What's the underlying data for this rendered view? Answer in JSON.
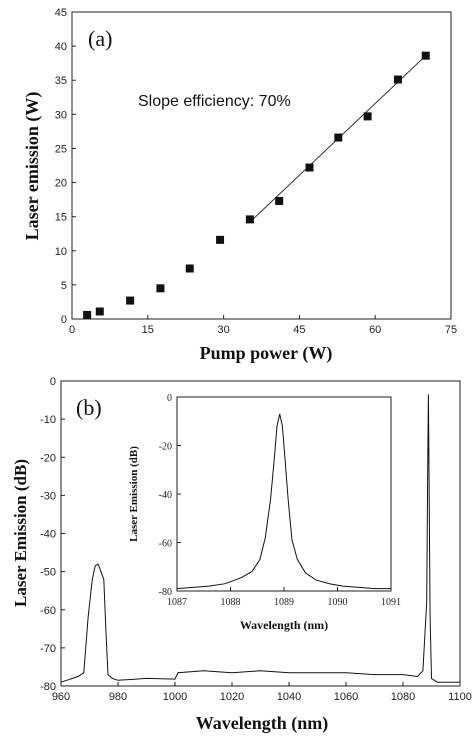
{
  "chart_data": [
    {
      "type": "scatter",
      "panel_label": "(a)",
      "xlabel": "Pump power (W)",
      "ylabel": "Laser emission (W)",
      "xlim": [
        0,
        75
      ],
      "ylim": [
        0,
        45
      ],
      "xticks": [
        0,
        15,
        30,
        45,
        60,
        75
      ],
      "yticks": [
        0,
        5,
        10,
        15,
        20,
        25,
        30,
        35,
        40,
        45
      ],
      "grid": false,
      "series": [
        {
          "x": [
            3,
            5.5,
            11.5,
            17.5,
            23.3,
            29.3,
            35.2,
            41,
            47,
            52.7,
            58.5,
            64.5,
            70
          ],
          "y": [
            0.6,
            1.1,
            2.7,
            4.5,
            7.4,
            11.6,
            14.6,
            17.3,
            22.2,
            26.6,
            29.7,
            35.1,
            38.6
          ]
        }
      ],
      "fit_line": {
        "x": [
          35.2,
          70
        ],
        "y": [
          14.2,
          38.6
        ]
      },
      "annotation": "Slope efficiency: 70%"
    },
    {
      "type": "line",
      "panel_label": "(b)",
      "xlabel": "Wavelength (nm)",
      "ylabel": "Laser Emission (dB)",
      "xlim": [
        960,
        1100
      ],
      "ylim": [
        -80,
        0
      ],
      "xticks": [
        960,
        980,
        1000,
        1020,
        1040,
        1060,
        1080,
        1100
      ],
      "yticks": [
        0,
        -10,
        -20,
        -30,
        -40,
        -50,
        -60,
        -70,
        -80
      ],
      "grid": false,
      "series": [
        {
          "x": [
            960,
            962,
            964,
            966,
            968,
            969.5,
            971,
            972,
            973,
            974,
            975,
            975.8,
            976.5,
            978,
            980,
            990,
            1000,
            1001,
            1010,
            1020,
            1030,
            1040,
            1050,
            1060,
            1070,
            1080,
            1085,
            1087,
            1088.3,
            1088.7,
            1088.9,
            1089.1,
            1089.5,
            1090,
            1092,
            1096,
            1100
          ],
          "y": [
            -79,
            -78.5,
            -78,
            -77.5,
            -76.5,
            -62,
            -52,
            -48.5,
            -48,
            -50,
            -52,
            -66,
            -77,
            -78,
            -78.5,
            -78,
            -78.2,
            -76.5,
            -76,
            -76.5,
            -76,
            -76.5,
            -76.5,
            -76.5,
            -77,
            -77,
            -77.5,
            -76,
            -58,
            -20,
            -3.5,
            -20,
            -62,
            -78,
            -79,
            -79,
            -79
          ]
        }
      ],
      "inset": {
        "type": "line",
        "xlabel": "Wavelength (nm)",
        "ylabel": "Laser Emission (dB)",
        "xlim": [
          1087,
          1091
        ],
        "ylim": [
          -80,
          0
        ],
        "xticks": [
          1087,
          1088,
          1089,
          1090,
          1091
        ],
        "yticks": [
          0,
          -20,
          -40,
          -60,
          -80
        ],
        "series": [
          {
            "x": [
              1087,
              1087.3,
              1087.6,
              1087.9,
              1088.2,
              1088.4,
              1088.55,
              1088.65,
              1088.75,
              1088.82,
              1088.87,
              1088.92,
              1088.97,
              1089.02,
              1089.08,
              1089.15,
              1089.25,
              1089.4,
              1089.6,
              1089.85,
              1090.1,
              1090.4,
              1090.7,
              1091
            ],
            "y": [
              -79,
              -78.5,
              -78,
              -77,
              -74.5,
              -72,
              -67,
              -58,
              -42,
              -25,
              -12,
              -7,
              -12,
              -26,
              -43,
              -59,
              -67,
              -72.5,
              -75.5,
              -77,
              -78,
              -78.5,
              -79,
              -79
            ]
          }
        ]
      }
    }
  ]
}
